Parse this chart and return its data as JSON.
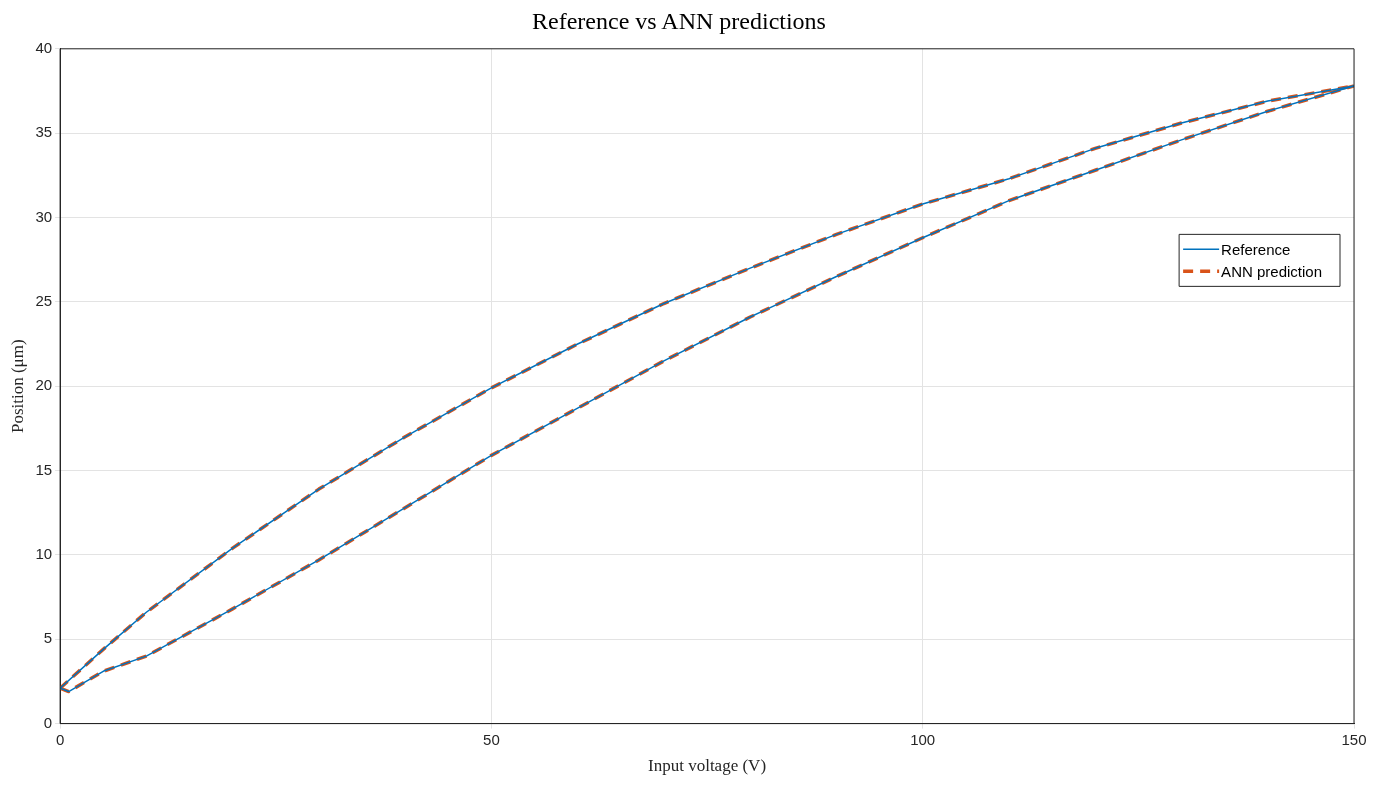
{
  "chart_data": {
    "type": "line",
    "title": "Reference vs ANN predictions",
    "xlabel": "Input voltage (V)",
    "ylabel": "Position (μm)",
    "series": [
      {
        "name": "Reference",
        "color": "#0072bd",
        "line_style": "solid",
        "x": [
          0,
          1,
          5,
          10,
          20,
          30,
          40,
          50,
          60,
          70,
          80,
          90,
          100,
          110,
          120,
          130,
          140,
          150
        ],
        "values": [
          2.1,
          1.9,
          3.1,
          4.0,
          6.8,
          9.7,
          12.8,
          15.9,
          18.7,
          21.5,
          24.1,
          26.5,
          28.8,
          31.0,
          32.8,
          34.6,
          36.3,
          37.8
        ]
      },
      {
        "color": "#0072bd",
        "line_style": "solid",
        "x": [
          0,
          5,
          10,
          20,
          30,
          40,
          50,
          60,
          70,
          80,
          90,
          100,
          110,
          120,
          130,
          140,
          150
        ],
        "values": [
          2.1,
          4.4,
          6.6,
          10.4,
          13.9,
          17.0,
          19.9,
          22.5,
          24.9,
          27.0,
          29.0,
          30.8,
          32.3,
          34.1,
          35.6,
          36.9,
          37.8
        ]
      },
      {
        "name": "ANN prediction",
        "color": "#d95319",
        "line_style": "dashed",
        "x": [
          0,
          1,
          5,
          10,
          20,
          30,
          40,
          50,
          60,
          70,
          80,
          90,
          100,
          110,
          120,
          130,
          140,
          150
        ],
        "values": [
          2.1,
          1.9,
          3.1,
          4.0,
          6.8,
          9.7,
          12.8,
          15.9,
          18.7,
          21.5,
          24.1,
          26.5,
          28.8,
          31.0,
          32.8,
          34.6,
          36.3,
          37.8
        ]
      },
      {
        "color": "#d95319",
        "line_style": "dashed",
        "x": [
          0,
          5,
          10,
          20,
          30,
          40,
          50,
          60,
          70,
          80,
          90,
          100,
          110,
          120,
          130,
          140,
          150
        ],
        "values": [
          2.1,
          4.4,
          6.6,
          10.4,
          13.9,
          17.0,
          19.9,
          22.5,
          24.9,
          27.0,
          29.0,
          30.8,
          32.3,
          34.1,
          35.6,
          36.9,
          37.8
        ]
      }
    ],
    "xlim": [
      0,
      150
    ],
    "xticks": [
      0,
      50,
      100,
      150
    ],
    "ylim": [
      0,
      40
    ],
    "yticks": [
      0,
      5,
      10,
      15,
      20,
      25,
      30,
      35,
      40
    ],
    "grid": true,
    "legend": "right",
    "marker": "none"
  }
}
